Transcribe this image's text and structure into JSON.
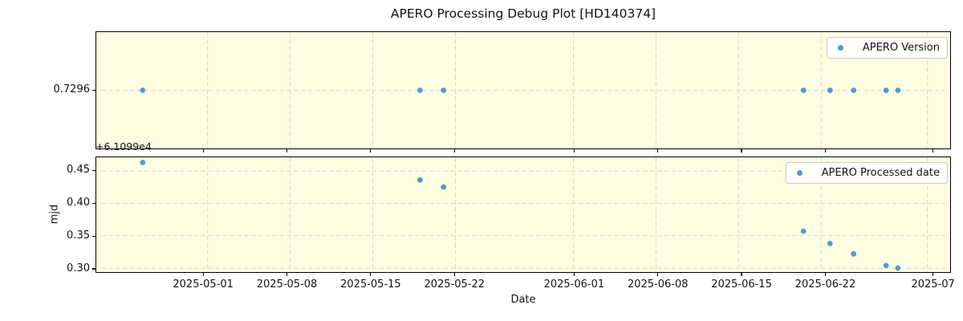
{
  "title": "APERO Processing Debug Plot [HD140374]",
  "xlabel": "Date",
  "colors": {
    "marker": "#569ac6",
    "plot_background": "#fffde2",
    "grid": "#d6d6d6",
    "spine": "#000000",
    "legend_border": "#c9c9c9",
    "text": "#141414"
  },
  "x_axis": {
    "domain_start": "2025-04-22T00:00:00",
    "domain_end": "2025-07-02T12:00:00",
    "ticks": [
      {
        "date": "2025-05-01",
        "label": "2025-05-01"
      },
      {
        "date": "2025-05-08",
        "label": "2025-05-08"
      },
      {
        "date": "2025-05-15",
        "label": "2025-05-15"
      },
      {
        "date": "2025-05-22",
        "label": "2025-05-22"
      },
      {
        "date": "2025-06-01",
        "label": "2025-06-01"
      },
      {
        "date": "2025-06-08",
        "label": "2025-06-08"
      },
      {
        "date": "2025-06-15",
        "label": "2025-06-15"
      },
      {
        "date": "2025-06-22",
        "label": "2025-06-22"
      },
      {
        "date": "2025-07-01",
        "label": "2025-07"
      }
    ]
  },
  "chart_data": [
    {
      "type": "scatter",
      "legend": "APERO Version",
      "legend_marker": "dot-icon",
      "x": [
        "2025-04-25T12:00",
        "2025-05-19",
        "2025-05-21",
        "2025-06-20T12:00",
        "2025-06-22T18:00",
        "2025-06-24T18:00",
        "2025-06-27T12:00",
        "2025-06-28T12:00"
      ],
      "y": [
        0.7296,
        0.7296,
        0.7296,
        0.7296,
        0.7296,
        0.7296,
        0.7296,
        0.7296
      ],
      "ylim": [
        0.7291,
        0.7301
      ],
      "yticks": [
        {
          "value": 0.7296,
          "label": "0.7296"
        }
      ],
      "ylabel": "",
      "grid": "dashed",
      "legend_position": "upper right"
    },
    {
      "type": "scatter",
      "legend": "APERO Processed date",
      "legend_marker": "dot-icon",
      "x": [
        "2025-04-25T12:00",
        "2025-05-19",
        "2025-05-21",
        "2025-06-20T12:00",
        "2025-06-22T18:00",
        "2025-06-24T18:00",
        "2025-06-27T12:00",
        "2025-06-28T12:00"
      ],
      "y": [
        0.463,
        0.436,
        0.425,
        0.357,
        0.338,
        0.322,
        0.304,
        0.3
      ],
      "ylim": [
        0.294,
        0.471
      ],
      "yticks": [
        {
          "value": 0.3,
          "label": "0.30"
        },
        {
          "value": 0.35,
          "label": "0.35"
        },
        {
          "value": 0.4,
          "label": "0.40"
        },
        {
          "value": 0.45,
          "label": "0.45"
        }
      ],
      "ylabel": "mjd",
      "y_offset_text": "+6.1099e4",
      "grid": "dashed",
      "legend_position": "upper right"
    }
  ]
}
